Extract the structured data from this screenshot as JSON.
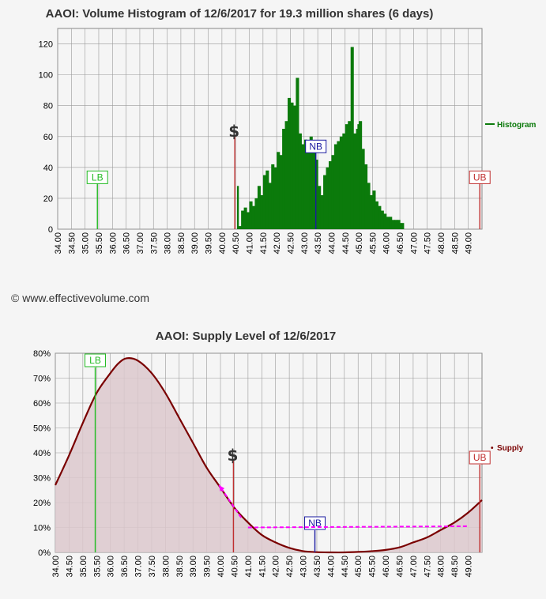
{
  "copyright": "© www.effectivevolume.com",
  "colors": {
    "histogram": "#0b7a0b",
    "supply_line": "#7a0000",
    "supply_fill": "#dcc8cc",
    "lb": "#22bb22",
    "nb": "#1a1aa0",
    "ub": "#c03030",
    "grid": "#9a9a9a",
    "arrow": "#ff00ff",
    "dollar": "#333333"
  },
  "chart_data": [
    {
      "type": "bar",
      "title": "AAOI: Volume Histogram of 12/6/2017 for 19.3 million shares (6 days)",
      "legend": "Histogram",
      "legend_position": "right",
      "grid": true,
      "ylim": [
        0,
        130
      ],
      "yticks": [
        "0",
        "20",
        "40",
        "60",
        "80",
        "100",
        "120"
      ],
      "xlim": [
        34.0,
        49.5
      ],
      "xticks": [
        "34.00",
        "34.50",
        "35.00",
        "35.50",
        "36.00",
        "36.50",
        "37.00",
        "37.50",
        "38.00",
        "38.50",
        "39.00",
        "39.50",
        "40.00",
        "40.50",
        "41.00",
        "41.50",
        "42.00",
        "42.50",
        "43.00",
        "43.50",
        "44.00",
        "44.50",
        "45.00",
        "45.50",
        "46.00",
        "46.50",
        "47.00",
        "47.50",
        "48.00",
        "48.50",
        "49.00"
      ],
      "x": [
        40.55,
        40.6,
        40.7,
        40.8,
        40.9,
        41.0,
        41.1,
        41.2,
        41.3,
        41.4,
        41.5,
        41.6,
        41.7,
        41.8,
        41.9,
        42.0,
        42.1,
        42.2,
        42.3,
        42.4,
        42.5,
        42.6,
        42.7,
        42.8,
        42.9,
        43.0,
        43.1,
        43.2,
        43.3,
        43.4,
        43.5,
        43.6,
        43.7,
        43.8,
        43.9,
        44.0,
        44.1,
        44.2,
        44.3,
        44.4,
        44.5,
        44.6,
        44.7,
        44.8,
        44.9,
        44.95,
        45.0,
        45.1,
        45.2,
        45.3,
        45.4,
        45.5,
        45.6,
        45.7,
        45.8,
        45.9,
        46.0,
        46.1,
        46.2,
        46.3,
        46.4,
        46.5,
        46.55
      ],
      "values": [
        28,
        2,
        12,
        14,
        11,
        18,
        15,
        20,
        28,
        22,
        35,
        38,
        30,
        42,
        40,
        50,
        48,
        65,
        70,
        85,
        82,
        80,
        98,
        62,
        55,
        58,
        52,
        60,
        55,
        45,
        28,
        22,
        35,
        40,
        44,
        48,
        55,
        57,
        60,
        62,
        68,
        70,
        118,
        62,
        65,
        68,
        70,
        52,
        42,
        30,
        22,
        25,
        18,
        15,
        12,
        10,
        8,
        8,
        6,
        6,
        6,
        4,
        4
      ],
      "markers": {
        "LB": {
          "label": "LB",
          "x": 35.45,
          "value": 30
        },
        "NB": {
          "label": "NB",
          "x": 43.43,
          "value": 50
        },
        "UB": {
          "label": "UB",
          "x": 49.42,
          "value": 30
        },
        "dollar": {
          "label": "$",
          "x": 40.47,
          "value": 60
        }
      }
    },
    {
      "type": "area",
      "title": "AAOI: Supply Level of 12/6/2017",
      "legend": "Supply",
      "legend_position": "right",
      "grid": true,
      "ylim": [
        0,
        80
      ],
      "yticks": [
        "0%",
        "10%",
        "20%",
        "30%",
        "40%",
        "50%",
        "60%",
        "70%",
        "80%"
      ],
      "xlim": [
        34.0,
        49.5
      ],
      "xticks": [
        "34.00",
        "34.50",
        "35.00",
        "35.50",
        "36.00",
        "36.50",
        "37.00",
        "37.50",
        "38.00",
        "38.50",
        "39.00",
        "39.50",
        "40.00",
        "40.50",
        "41.00",
        "41.50",
        "42.00",
        "42.50",
        "43.00",
        "43.50",
        "44.00",
        "44.50",
        "45.00",
        "45.50",
        "46.00",
        "46.50",
        "47.00",
        "47.50",
        "48.00",
        "48.50",
        "49.00"
      ],
      "x": [
        34.0,
        34.5,
        35.0,
        35.5,
        36.0,
        36.3,
        36.6,
        37.0,
        37.5,
        38.0,
        38.5,
        39.0,
        39.5,
        40.0,
        40.5,
        41.0,
        41.5,
        42.0,
        42.5,
        43.0,
        43.5,
        44.0,
        44.5,
        45.0,
        45.5,
        46.0,
        46.5,
        47.0,
        47.5,
        48.0,
        48.5,
        49.0,
        49.5
      ],
      "values": [
        27,
        39,
        52,
        64,
        72,
        76,
        78,
        77,
        72,
        64,
        54,
        44,
        34,
        26,
        18,
        12,
        7,
        4,
        1.8,
        0.5,
        0.1,
        0,
        0,
        0.2,
        0.5,
        1,
        2,
        4,
        6,
        9,
        12,
        16,
        21
      ],
      "markers": {
        "LB": {
          "label": "LB",
          "x": 35.45,
          "value": 65
        },
        "NB": {
          "label": "NB",
          "x": 43.43,
          "value": 0
        },
        "UB": {
          "label": "UB",
          "x": 49.42,
          "value": 22
        },
        "dollar": {
          "label": "$",
          "x": 40.47,
          "value": 20
        }
      },
      "arrow": {
        "from": [
          40.75,
          14
        ],
        "to": [
          39.95,
          27
        ]
      },
      "nb_line": {
        "from": [
          41.0,
          10
        ],
        "to": [
          49.0,
          10.5
        ]
      }
    }
  ]
}
